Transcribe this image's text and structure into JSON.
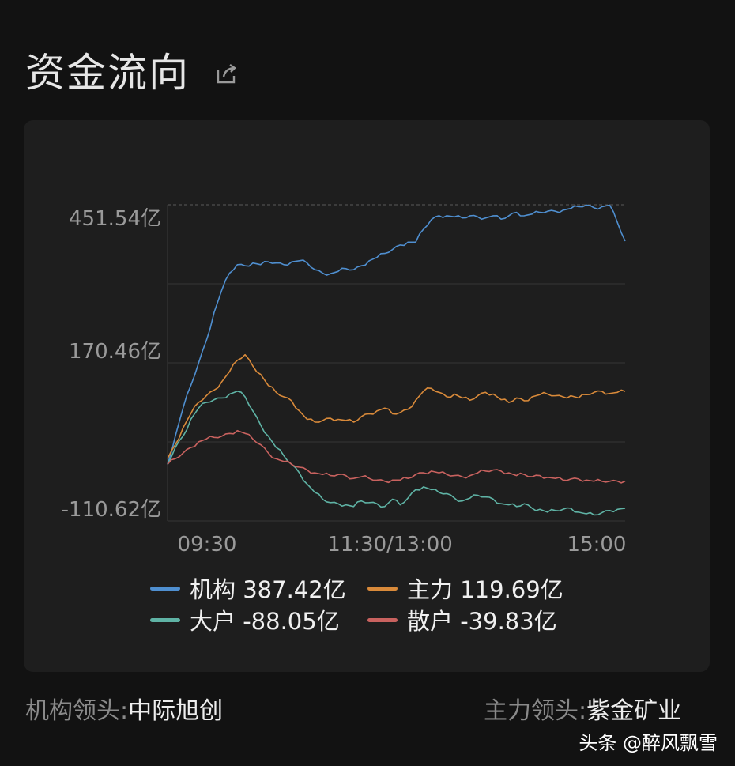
{
  "page": {
    "title": "资金流向",
    "share_icon": "share-icon"
  },
  "chart_data": {
    "type": "line",
    "y_ticks": [
      "451.54亿",
      "170.46亿",
      "-110.62亿"
    ],
    "x_ticks": [
      "09:30",
      "11:30/13:00",
      "15:00"
    ],
    "ylim": [
      -110.62,
      451.54
    ],
    "grid": true,
    "x_points": 60,
    "series": [
      {
        "name": "机构",
        "label": "机构 387.42亿",
        "color": "#4f8fd0",
        "values": [
          -10,
          40,
          90,
          130,
          170,
          210,
          260,
          300,
          330,
          345,
          343,
          348,
          345,
          350,
          348,
          345,
          350,
          352,
          348,
          336,
          330,
          329,
          333,
          338,
          336,
          343,
          352,
          358,
          365,
          372,
          380,
          385,
          385,
          408,
          425,
          432,
          432,
          430,
          428,
          432,
          430,
          428,
          432,
          426,
          432,
          438,
          432,
          435,
          438,
          440,
          440,
          442,
          445,
          448,
          451,
          446,
          448,
          451,
          420,
          387
        ]
      },
      {
        "name": "主力",
        "label": "主力 119.69亿",
        "color": "#d98a3a",
        "values": [
          0,
          25,
          55,
          80,
          100,
          112,
          122,
          137,
          155,
          175,
          185,
          165,
          150,
          130,
          118,
          110,
          103,
          85,
          70,
          65,
          68,
          72,
          70,
          68,
          65,
          75,
          80,
          85,
          90,
          80,
          82,
          88,
          104,
          120,
          125,
          118,
          110,
          115,
          108,
          104,
          112,
          118,
          115,
          105,
          100,
          108,
          103,
          110,
          114,
          115,
          112,
          110,
          112,
          108,
          114,
          118,
          120,
          116,
          118,
          119.69
        ]
      },
      {
        "name": "大户",
        "label": "大户 -88.05亿",
        "color": "#5fb3a5",
        "values": [
          -10,
          20,
          40,
          70,
          90,
          100,
          105,
          108,
          115,
          120,
          110,
          85,
          60,
          40,
          20,
          5,
          -10,
          -25,
          -45,
          -60,
          -72,
          -78,
          -80,
          -82,
          -85,
          -75,
          -78,
          -80,
          -85,
          -72,
          -82,
          -70,
          -55,
          -50,
          -55,
          -60,
          -62,
          -70,
          -75,
          -70,
          -65,
          -68,
          -72,
          -80,
          -82,
          -85,
          -80,
          -88,
          -90,
          -95,
          -92,
          -90,
          -88,
          -95,
          -98,
          -100,
          -96,
          -92,
          -90,
          -88.05
        ]
      },
      {
        "name": "散户",
        "label": "散户 -39.83亿",
        "color": "#c9625f",
        "values": [
          -10,
          0,
          10,
          20,
          30,
          35,
          38,
          40,
          45,
          50,
          45,
          35,
          25,
          10,
          0,
          -5,
          -10,
          -15,
          -20,
          -25,
          -28,
          -30,
          -28,
          -30,
          -35,
          -32,
          -35,
          -38,
          -40,
          -38,
          -38,
          -35,
          -28,
          -25,
          -22,
          -25,
          -28,
          -30,
          -32,
          -30,
          -25,
          -22,
          -20,
          -22,
          -25,
          -30,
          -28,
          -32,
          -30,
          -33,
          -35,
          -38,
          -36,
          -36,
          -38,
          -40,
          -40,
          -40,
          -39.83,
          -39.83
        ]
      }
    ]
  },
  "footer": {
    "left_label": "机构领头:",
    "left_value": "中际旭创",
    "right_label": "主力领头:",
    "right_value": "紫金矿业"
  },
  "watermark": "头条 @醉风飘雪",
  "colors": {
    "background": "#121212",
    "panel": "#1e1e1e",
    "grid": "#3a3a3a",
    "axis_text": "#9a9a9a"
  }
}
